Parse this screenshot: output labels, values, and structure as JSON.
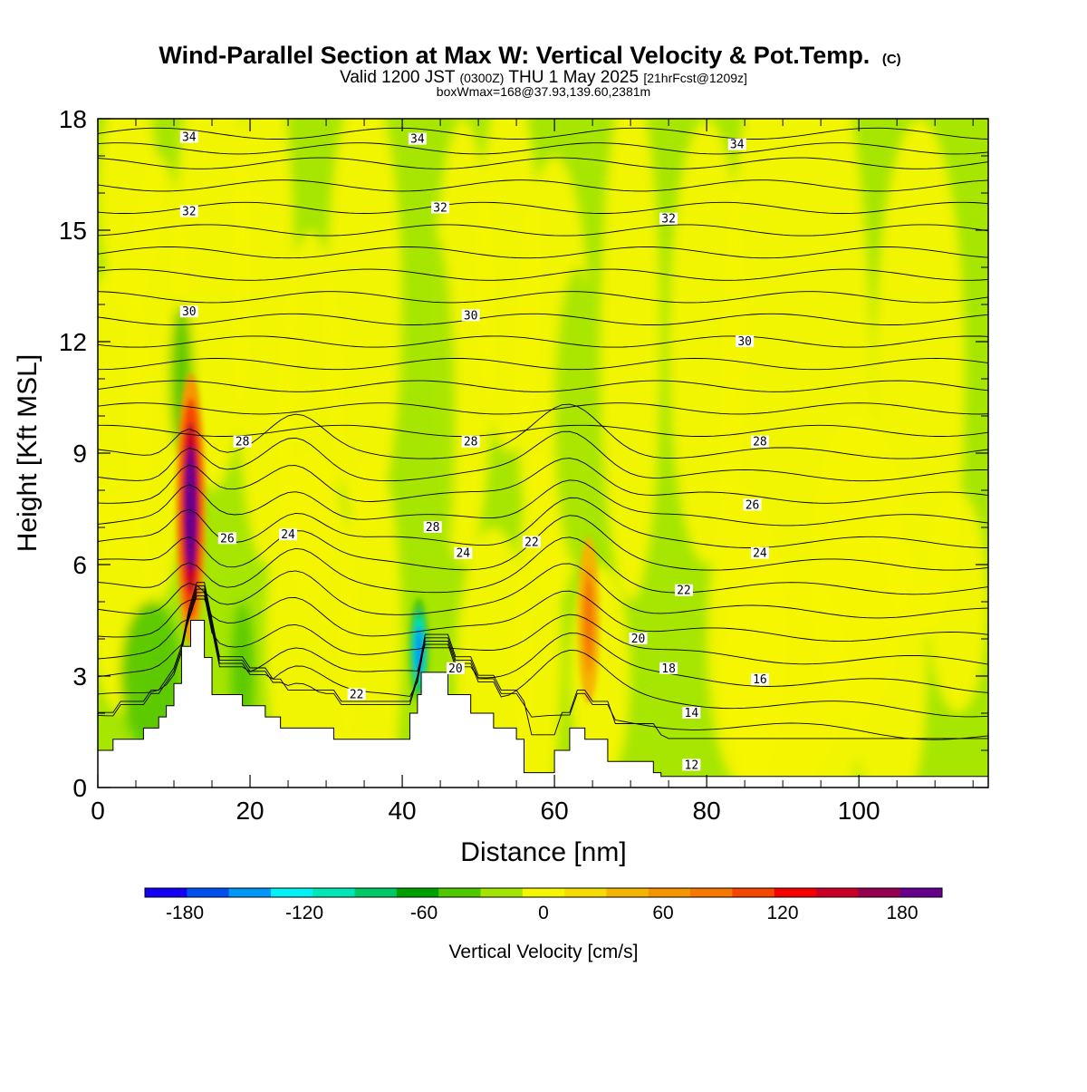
{
  "header": {
    "title_main": "Wind-Parallel Section at Max W: Vertical Velocity & Pot.Temp.",
    "title_copyright": "(C)",
    "valid_prefix": "Valid 1200 JST",
    "valid_utc": "(0300Z)",
    "valid_date": "THU 1 May 2025",
    "valid_fcst": "[21hrFcst@1209z]",
    "box_info": "boxWmax=168@37.93,139.60,2381m"
  },
  "chart_data": {
    "type": "heatmap",
    "xlabel": "Distance [nm]",
    "ylabel": "Height [Kft MSL]",
    "xlim": [
      0,
      117
    ],
    "ylim": [
      0,
      18
    ],
    "xticks": [
      0,
      20,
      40,
      60,
      80,
      100
    ],
    "yticks": [
      0,
      3,
      6,
      9,
      12,
      15,
      18
    ],
    "terrain": [
      {
        "x": 0,
        "h": 1.0
      },
      {
        "x": 2,
        "h": 1.3
      },
      {
        "x": 4,
        "h": 1.3
      },
      {
        "x": 6,
        "h": 1.6
      },
      {
        "x": 8,
        "h": 1.9
      },
      {
        "x": 9,
        "h": 2.2
      },
      {
        "x": 10,
        "h": 2.8
      },
      {
        "x": 11,
        "h": 3.8
      },
      {
        "x": 12,
        "h": 3.8
      },
      {
        "x": 12.2,
        "h": 4.5
      },
      {
        "x": 14,
        "h": 3.5
      },
      {
        "x": 15,
        "h": 2.5
      },
      {
        "x": 19,
        "h": 2.2
      },
      {
        "x": 22,
        "h": 1.9
      },
      {
        "x": 24,
        "h": 1.6
      },
      {
        "x": 28,
        "h": 1.6
      },
      {
        "x": 31,
        "h": 1.3
      },
      {
        "x": 39,
        "h": 1.3
      },
      {
        "x": 41,
        "h": 2.0
      },
      {
        "x": 42,
        "h": 2.5
      },
      {
        "x": 42.5,
        "h": 3.1
      },
      {
        "x": 46,
        "h": 2.5
      },
      {
        "x": 49,
        "h": 2.0
      },
      {
        "x": 52,
        "h": 1.6
      },
      {
        "x": 55,
        "h": 1.3
      },
      {
        "x": 56,
        "h": 0.4
      },
      {
        "x": 59,
        "h": 0.4
      },
      {
        "x": 60,
        "h": 1.0
      },
      {
        "x": 62,
        "h": 1.6
      },
      {
        "x": 64,
        "h": 1.3
      },
      {
        "x": 67,
        "h": 0.7
      },
      {
        "x": 73,
        "h": 0.4
      },
      {
        "x": 74,
        "h": 0.3
      },
      {
        "x": 117,
        "h": 0.3
      }
    ],
    "theta_labels": [
      {
        "value": "34",
        "x": 12,
        "y": 17.5
      },
      {
        "value": "34",
        "x": 42,
        "y": 17.45
      },
      {
        "value": "34",
        "x": 84,
        "y": 17.3
      },
      {
        "value": "32",
        "x": 12,
        "y": 15.5
      },
      {
        "value": "32",
        "x": 45,
        "y": 15.6
      },
      {
        "value": "32",
        "x": 75,
        "y": 15.3
      },
      {
        "value": "30",
        "x": 12,
        "y": 12.8
      },
      {
        "value": "30",
        "x": 49,
        "y": 12.7
      },
      {
        "value": "30",
        "x": 85,
        "y": 12.0
      },
      {
        "value": "28",
        "x": 19,
        "y": 9.3
      },
      {
        "value": "28",
        "x": 49,
        "y": 9.3
      },
      {
        "value": "28",
        "x": 87,
        "y": 9.3
      },
      {
        "value": "26",
        "x": 17,
        "y": 6.7
      },
      {
        "value": "24",
        "x": 25,
        "y": 6.8
      },
      {
        "value": "28",
        "x": 44,
        "y": 7.0
      },
      {
        "value": "24",
        "x": 48,
        "y": 6.3
      },
      {
        "value": "22",
        "x": 57,
        "y": 6.6
      },
      {
        "value": "26",
        "x": 86,
        "y": 7.6
      },
      {
        "value": "24",
        "x": 87,
        "y": 6.3
      },
      {
        "value": "22",
        "x": 77,
        "y": 5.3
      },
      {
        "value": "20",
        "x": 71,
        "y": 4.0
      },
      {
        "value": "18",
        "x": 75,
        "y": 3.2
      },
      {
        "value": "16",
        "x": 87,
        "y": 2.9
      },
      {
        "value": "14",
        "x": 78,
        "y": 2.0
      },
      {
        "value": "12",
        "x": 78,
        "y": 0.6
      },
      {
        "value": "22",
        "x": 34,
        "y": 2.5
      },
      {
        "value": "20",
        "x": 47,
        "y": 3.2
      }
    ],
    "updrafts": [
      {
        "x": 12.2,
        "y": 7.5,
        "w": 1.2,
        "h": 2.6,
        "value": 168
      },
      {
        "x": 64.5,
        "y": 4.5,
        "w": 0.9,
        "h": 1.6,
        "value": 60
      },
      {
        "x": 42.2,
        "y": 3.7,
        "w": 0.8,
        "h": 1.0,
        "value": -120
      }
    ]
  },
  "colorbar": {
    "label": "Vertical Velocity [cm/s]",
    "tick_labels": [
      "-180",
      "-120",
      "-60",
      "0",
      "60",
      "120",
      "180"
    ],
    "tick_values": [
      -180,
      -120,
      -60,
      0,
      60,
      120,
      180
    ],
    "min": -200,
    "max": 200,
    "colors": [
      "#1400f5",
      "#0050f0",
      "#0096f5",
      "#00f0f5",
      "#00e6b4",
      "#00c864",
      "#00a000",
      "#50c800",
      "#a0e600",
      "#f5f500",
      "#f5dc00",
      "#f5b400",
      "#f59600",
      "#f57800",
      "#f54600",
      "#f50000",
      "#c80028",
      "#960050",
      "#64008c"
    ]
  }
}
